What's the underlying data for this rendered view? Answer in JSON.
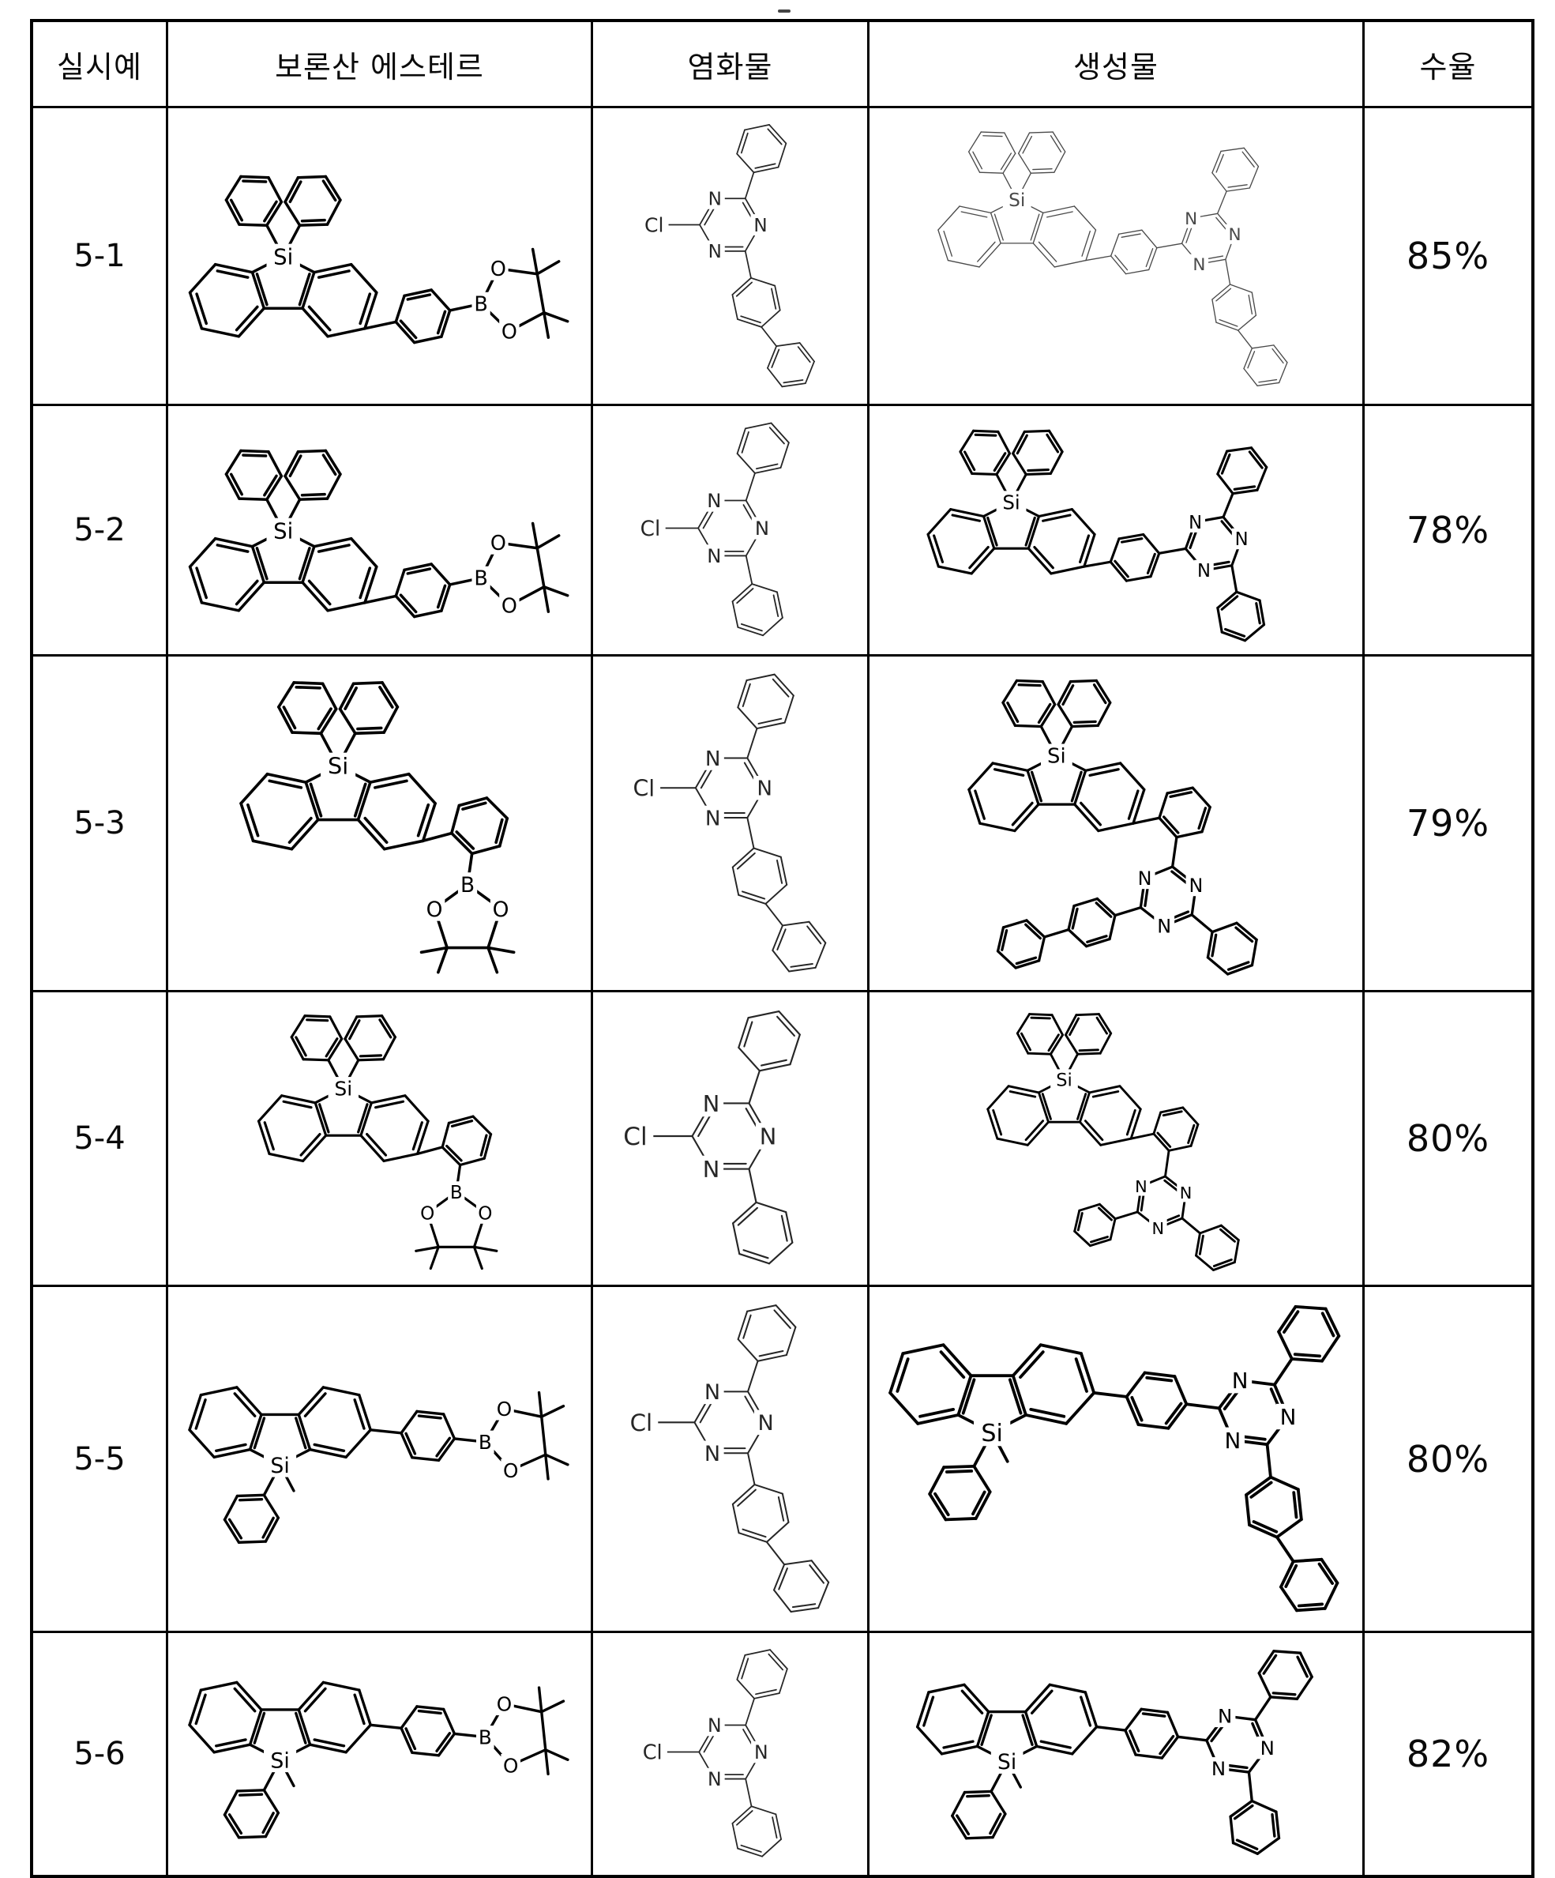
{
  "page": {
    "background": "#ffffff"
  },
  "atoms": {
    "silicon": "Si",
    "boron": "B",
    "oxygen": "O",
    "nitrogen": "N",
    "chlorine": "Cl"
  },
  "colors": {
    "ink": "#000000",
    "thin_ink": "#262626",
    "light_ink": "#4a4a4a",
    "grid": "#000000",
    "background": "#ffffff"
  },
  "table": {
    "headers": [
      "실시예",
      "보론산 에스테르",
      "염화물",
      "생성물",
      "수율"
    ],
    "rows": [
      {
        "example": "5-1",
        "yield": "85%",
        "boronic_ester": {
          "drawing": "A",
          "line_style": "bold",
          "desc": "9,9-diphenyl-dibenzosilole linked para-phenylene to pinacol boronate (Bpin right)"
        },
        "chloride": {
          "drawing": "D",
          "line_style": "thin",
          "desc": "2-chloro-4-phenyl-6-(biphenyl-4-yl)-1,3,5-triazine"
        },
        "product": {
          "drawing": "F",
          "line_style": "light",
          "desc": "9,9-diphenyl-dibenzosilole - phenylene - triazine with phenyl and biphenyl"
        }
      },
      {
        "example": "5-2",
        "yield": "78%",
        "boronic_ester": {
          "drawing": "A",
          "line_style": "bold",
          "desc": "9,9-diphenyl-dibenzosilole linked para-phenylene to pinacol boronate (Bpin right)"
        },
        "chloride": {
          "drawing": "E",
          "line_style": "thin",
          "desc": "2-chloro-4,6-diphenyl-1,3,5-triazine"
        },
        "product": {
          "drawing": "G",
          "line_style": "bold",
          "desc": "9,9-diphenyl-dibenzosilole - phenylene - triazine with two phenyls"
        }
      },
      {
        "example": "5-3",
        "yield": "79%",
        "boronic_ester": {
          "drawing": "B",
          "line_style": "bold",
          "desc": "9,9-diphenyl-dibenzosilole with ortho-phenyl pinacol boronate (Bpin down)"
        },
        "chloride": {
          "drawing": "D",
          "line_style": "thin",
          "desc": "2-chloro-4-phenyl-6-(biphenyl-4-yl)-1,3,5-triazine"
        },
        "product": {
          "drawing": "H",
          "line_style": "bold",
          "desc": "9,9-diphenyl-dibenzosilole - ortho-phenylene - triazine with biphenyl and phenyl"
        }
      },
      {
        "example": "5-4",
        "yield": "80%",
        "boronic_ester": {
          "drawing": "B",
          "line_style": "bold",
          "desc": "9,9-diphenyl-dibenzosilole with ortho-phenyl pinacol boronate (Bpin down)"
        },
        "chloride": {
          "drawing": "E",
          "line_style": "thin",
          "desc": "2-chloro-4,6-diphenyl-1,3,5-triazine"
        },
        "product": {
          "drawing": "I",
          "line_style": "bold",
          "desc": "9,9-diphenyl-dibenzosilole - ortho-phenylene - triazine with two phenyls"
        }
      },
      {
        "example": "5-5",
        "yield": "80%",
        "boronic_ester": {
          "drawing": "C",
          "line_style": "bold",
          "desc": "9-methyl-9-phenyl-dibenzosilole linked para-phenylene to pinacol boronate"
        },
        "chloride": {
          "drawing": "D",
          "line_style": "thin",
          "desc": "2-chloro-4-phenyl-6-(biphenyl-4-yl)-1,3,5-triazine"
        },
        "product": {
          "drawing": "J",
          "line_style": "bold",
          "desc": "9-methyl-9-phenyl-dibenzosilole - phenylene - triazine with phenyl and biphenyl"
        }
      },
      {
        "example": "5-6",
        "yield": "82%",
        "boronic_ester": {
          "drawing": "C",
          "line_style": "bold",
          "desc": "9-methyl-9-phenyl-dibenzosilole linked para-phenylene to pinacol boronate"
        },
        "chloride": {
          "drawing": "E",
          "line_style": "thin",
          "desc": "2-chloro-4,6-diphenyl-1,3,5-triazine"
        },
        "product": {
          "drawing": "K",
          "line_style": "bold",
          "desc": "9-methyl-9-phenyl-dibenzosilole - phenylene - triazine with two phenyls"
        }
      }
    ]
  }
}
